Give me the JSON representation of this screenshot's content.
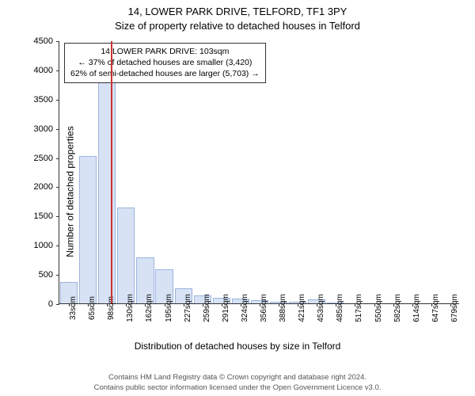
{
  "titles": {
    "line1": "14, LOWER PARK DRIVE, TELFORD, TF1 3PY",
    "line2": "Size of property relative to detached houses in Telford"
  },
  "chart": {
    "type": "histogram",
    "ylabel": "Number of detached properties",
    "xlabel": "Distribution of detached houses by size in Telford",
    "ylim": [
      0,
      4500
    ],
    "ytick_step": 500,
    "yticks": [
      0,
      500,
      1000,
      1500,
      2000,
      2500,
      3000,
      3500,
      4000,
      4500
    ],
    "xticks": [
      "33sqm",
      "65sqm",
      "98sqm",
      "130sqm",
      "162sqm",
      "195sqm",
      "227sqm",
      "259sqm",
      "291sqm",
      "324sqm",
      "356sqm",
      "388sqm",
      "421sqm",
      "453sqm",
      "485sqm",
      "517sqm",
      "550sqm",
      "582sqm",
      "614sqm",
      "647sqm",
      "679sqm"
    ],
    "bars": [
      370,
      2520,
      4175,
      1640,
      780,
      580,
      260,
      140,
      95,
      80,
      60,
      30,
      25,
      70,
      10,
      0,
      0,
      0,
      0,
      0,
      0
    ],
    "bar_color": "#d7e2f4",
    "bar_border": "#9cb4de",
    "marker": {
      "position_sqm": 103,
      "color": "#cc3333"
    },
    "info_box": {
      "line1": "14 LOWER PARK DRIVE: 103sqm",
      "line2": "← 37% of detached houses are smaller (3,420)",
      "line3": "62% of semi-detached houses are larger (5,703) →"
    },
    "axis_color": "#333333",
    "background": "#ffffff",
    "label_fontsize": 12,
    "tick_fontsize": 11
  },
  "footer": {
    "line1": "Contains HM Land Registry data © Crown copyright and database right 2024.",
    "line2": "Contains public sector information licensed under the Open Government Licence v3.0."
  }
}
